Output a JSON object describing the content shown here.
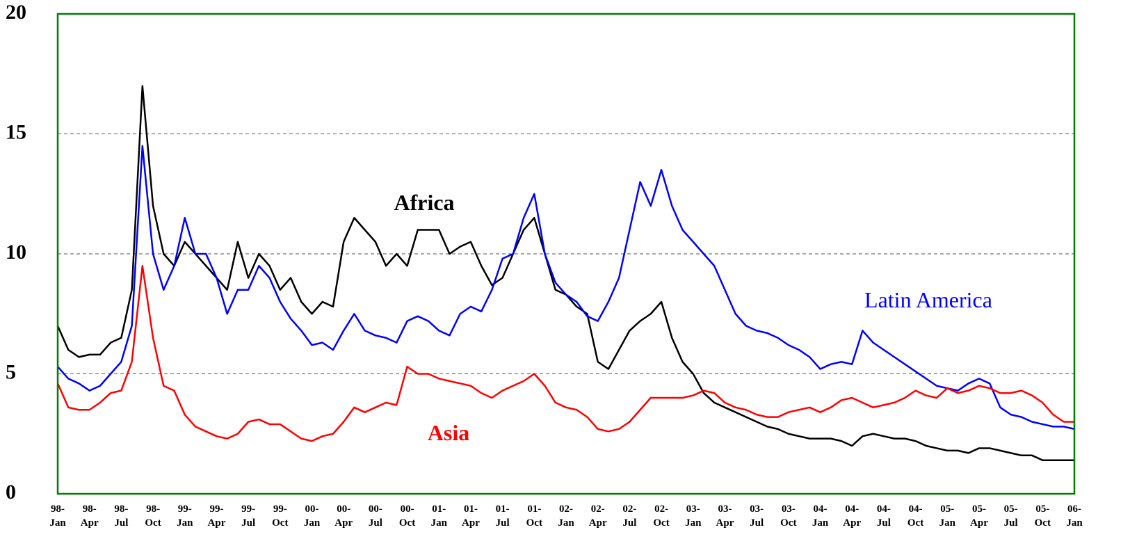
{
  "chart_data": {
    "type": "line",
    "categories": [
      "98-\nJan",
      null,
      null,
      "98-\nApr",
      null,
      null,
      "98-\nJul",
      null,
      null,
      "98-\nOct",
      null,
      null,
      "99-\nJan",
      null,
      null,
      "99-\nApr",
      null,
      null,
      "99-\nJul",
      null,
      null,
      "99-\nOct",
      null,
      null,
      "00-\nJan",
      null,
      null,
      "00-\nApr",
      null,
      null,
      "00-\nJul",
      null,
      null,
      "00-\nOct",
      null,
      null,
      "01-\nJan",
      null,
      null,
      "01-\nApr",
      null,
      null,
      "01-\nJul",
      null,
      null,
      "01-\nOct",
      null,
      null,
      "02-\nJan",
      null,
      null,
      "02-\nApr",
      null,
      null,
      "02-\nJul",
      null,
      null,
      "02-\nOct",
      null,
      null,
      "03-\nJan",
      null,
      null,
      "03-\nApr",
      null,
      null,
      "03-\nJul",
      null,
      null,
      "03-\nOct",
      null,
      null,
      "04-\nJan",
      null,
      null,
      "04-\nApr",
      null,
      null,
      "04-\nJul",
      null,
      null,
      "04-\nOct",
      null,
      null,
      "05-\nJan",
      null,
      null,
      "05-\nApr",
      null,
      null,
      "05-\nJul",
      null,
      null,
      "05-\nOct",
      null,
      null,
      "06-\nJan"
    ],
    "series": [
      {
        "name": "Africa",
        "color": "#000000",
        "values": [
          7.0,
          6.0,
          5.7,
          5.8,
          5.8,
          6.3,
          6.5,
          8.5,
          17,
          12,
          10,
          9.5,
          10.5,
          10,
          9.5,
          9,
          8.5,
          10.5,
          9,
          10,
          9.5,
          8.5,
          9,
          8,
          7.5,
          8,
          7.8,
          10.5,
          11.5,
          11,
          10.5,
          9.5,
          10,
          9.5,
          11,
          11,
          11,
          10,
          10.3,
          10.5,
          9.5,
          8.7,
          9,
          10,
          11,
          11.5,
          10,
          8.5,
          8.3,
          7.8,
          7.5,
          5.5,
          5.2,
          6,
          6.8,
          7.2,
          7.5,
          8,
          6.5,
          5.5,
          5,
          4.2,
          3.8,
          3.6,
          3.4,
          3.2,
          3.0,
          2.8,
          2.7,
          2.5,
          2.4,
          2.3,
          2.3,
          2.3,
          2.2,
          2.0,
          2.4,
          2.5,
          2.4,
          2.3,
          2.3,
          2.2,
          2.0,
          1.9,
          1.8,
          1.8,
          1.7,
          1.9,
          1.9,
          1.8,
          1.7,
          1.6,
          1.6,
          1.4,
          1.4,
          1.4,
          1.4
        ]
      },
      {
        "name": "Latin America",
        "color": "#0000ff",
        "values": [
          5.3,
          4.8,
          4.6,
          4.3,
          4.5,
          5,
          5.5,
          7,
          14.5,
          10,
          8.5,
          9.5,
          11.5,
          10,
          10,
          9,
          7.5,
          8.5,
          8.5,
          9.5,
          9,
          8,
          7.3,
          6.8,
          6.2,
          6.3,
          6.0,
          6.8,
          7.5,
          6.8,
          6.6,
          6.5,
          6.3,
          7.2,
          7.4,
          7.2,
          6.8,
          6.6,
          7.5,
          7.8,
          7.6,
          8.5,
          9.8,
          10,
          11.5,
          12.5,
          10,
          8.8,
          8.3,
          8.0,
          7.4,
          7.2,
          8,
          9,
          11,
          13,
          12,
          13.5,
          12,
          11,
          10.5,
          10,
          9.5,
          8.5,
          7.5,
          7,
          6.8,
          6.7,
          6.5,
          6.2,
          6,
          5.7,
          5.2,
          5.4,
          5.5,
          5.4,
          6.8,
          6.3,
          6.0,
          5.7,
          5.4,
          5.1,
          4.8,
          4.5,
          4.4,
          4.3,
          4.6,
          4.8,
          4.6,
          3.6,
          3.3,
          3.2,
          3.0,
          2.9,
          2.8,
          2.8,
          2.7
        ]
      },
      {
        "name": "Asia",
        "color": "#ff0000",
        "values": [
          4.6,
          3.6,
          3.5,
          3.5,
          3.8,
          4.2,
          4.3,
          5.5,
          9.5,
          6.5,
          4.5,
          4.3,
          3.3,
          2.8,
          2.6,
          2.4,
          2.3,
          2.5,
          3.0,
          3.1,
          2.9,
          2.9,
          2.6,
          2.3,
          2.2,
          2.4,
          2.5,
          3.0,
          3.6,
          3.4,
          3.6,
          3.8,
          3.7,
          5.3,
          5.0,
          5.0,
          4.8,
          4.7,
          4.6,
          4.5,
          4.2,
          4.0,
          4.3,
          4.5,
          4.7,
          5.0,
          4.5,
          3.8,
          3.6,
          3.5,
          3.2,
          2.7,
          2.6,
          2.7,
          3.0,
          3.5,
          4.0,
          4.0,
          4.0,
          4.0,
          4.1,
          4.3,
          4.2,
          3.8,
          3.6,
          3.5,
          3.3,
          3.2,
          3.2,
          3.4,
          3.5,
          3.6,
          3.4,
          3.6,
          3.9,
          4.0,
          3.8,
          3.6,
          3.7,
          3.8,
          4.0,
          4.3,
          4.1,
          4.0,
          4.4,
          4.2,
          4.3,
          4.5,
          4.4,
          4.2,
          4.2,
          4.3,
          4.1,
          3.8,
          3.3,
          3.0,
          3.0
        ]
      }
    ],
    "ylim": [
      0,
      20
    ],
    "yticks": [
      0,
      5,
      10,
      15,
      20
    ],
    "grid": true
  }
}
